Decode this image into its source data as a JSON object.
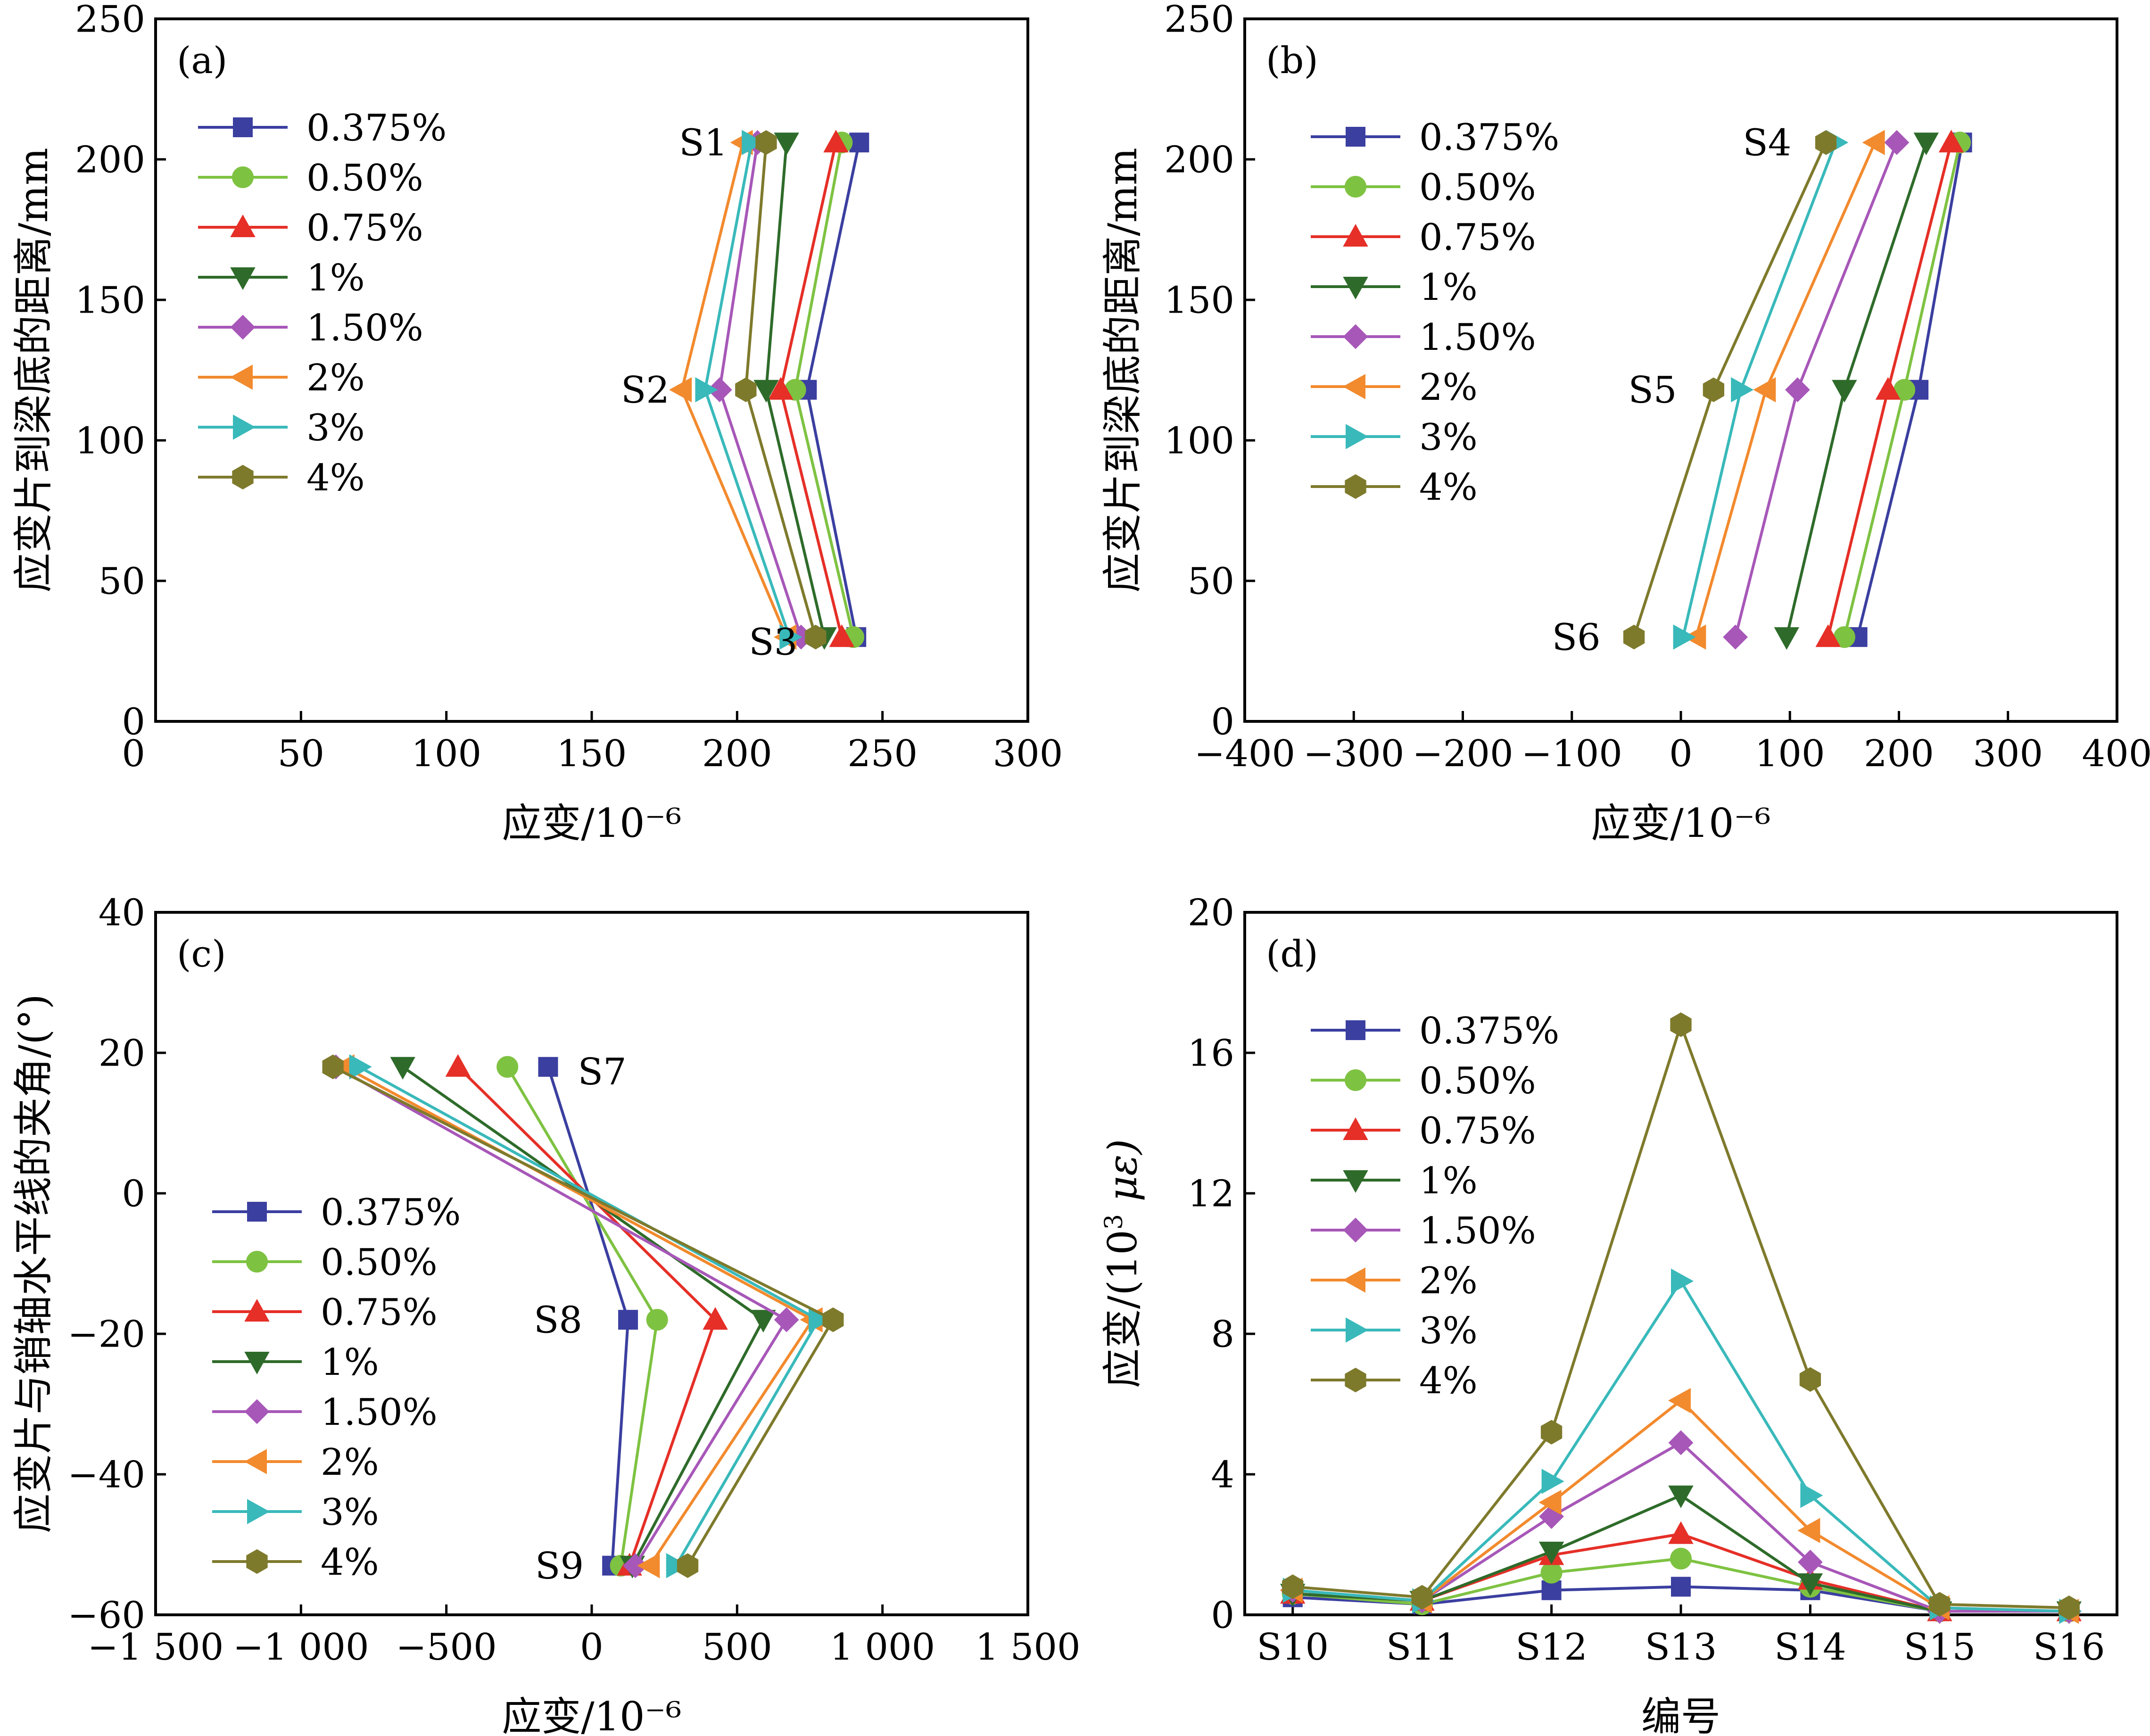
{
  "series_names": [
    "0.375%",
    "0.50%",
    "0.75%",
    "1%",
    "1.50%",
    "2%",
    "3%",
    "4%"
  ],
  "series_colors": [
    "#3b3fa0",
    "#7ec242",
    "#e52f27",
    "#2e6b2a",
    "#a757b8",
    "#f28a2e",
    "#39b9ba",
    "#7e7a2c"
  ],
  "series_markers": [
    "square",
    "circle",
    "triangle-up",
    "triangle-down",
    "diamond",
    "triangle-left",
    "triangle-right",
    "hexagon"
  ],
  "chart_data": [
    {
      "id": "a",
      "panel_label": "(a)",
      "type": "line",
      "xlabel": "应变/10⁻⁶",
      "ylabel": "应变片到梁底的距离/mm",
      "xlim": [
        0,
        300
      ],
      "ylim": [
        0,
        250
      ],
      "xticks": [
        50,
        100,
        150,
        200,
        250,
        300
      ],
      "xtick_labels": [
        "50",
        "100",
        "150",
        "200",
        "250",
        "300"
      ],
      "yticks": [
        0,
        50,
        100,
        150,
        200,
        250
      ],
      "ytick_labels": [
        "0",
        "50",
        "100",
        "150",
        "200",
        "250"
      ],
      "legend_position": "top-left",
      "point_labels": [
        {
          "text": "S1",
          "x": 200,
          "y": 206
        },
        {
          "text": "S2",
          "x": 180,
          "y": 118
        },
        {
          "text": "S3",
          "x": 224,
          "y": 30
        }
      ],
      "series": [
        {
          "name": "0.375%",
          "x": [
            242,
            224,
            241
          ],
          "y": [
            206,
            118,
            30
          ]
        },
        {
          "name": "0.50%",
          "x": [
            236,
            220,
            240
          ],
          "y": [
            206,
            118,
            30
          ]
        },
        {
          "name": "0.75%",
          "x": [
            234,
            215,
            236
          ],
          "y": [
            206,
            118,
            30
          ]
        },
        {
          "name": "1%",
          "x": [
            217,
            210,
            230
          ],
          "y": [
            206,
            118,
            30
          ]
        },
        {
          "name": "1.50%",
          "x": [
            207,
            194,
            222
          ],
          "y": [
            206,
            118,
            30
          ]
        },
        {
          "name": "2%",
          "x": [
            202,
            181,
            217
          ],
          "y": [
            206,
            118,
            30
          ]
        },
        {
          "name": "3%",
          "x": [
            205,
            189,
            218
          ],
          "y": [
            206,
            118,
            30
          ]
        },
        {
          "name": "4%",
          "x": [
            210,
            203,
            227
          ],
          "y": [
            206,
            118,
            30
          ]
        }
      ]
    },
    {
      "id": "b",
      "panel_label": "(b)",
      "type": "line",
      "xlabel": "应变/10⁻⁶",
      "ylabel": "应变片到梁底的距离/mm",
      "xlim": [
        -400,
        400
      ],
      "ylim": [
        0,
        250
      ],
      "xticks": [
        -400,
        -300,
        -200,
        -100,
        0,
        100,
        200,
        300,
        400
      ],
      "xtick_labels": [
        "−400",
        "−300",
        "−200",
        "−100",
        "0",
        "100",
        "200",
        "300",
        "400"
      ],
      "yticks": [
        0,
        50,
        100,
        150,
        200,
        250
      ],
      "ytick_labels": [
        "0",
        "50",
        "100",
        "150",
        "200",
        "250"
      ],
      "legend_position": "top-left",
      "point_labels": [
        {
          "text": "S4",
          "x": 110,
          "y": 206
        },
        {
          "text": "S5",
          "x": 5,
          "y": 118
        },
        {
          "text": "S6",
          "x": -65,
          "y": 30
        }
      ],
      "series": [
        {
          "name": "0.375%",
          "x": [
            258,
            218,
            162
          ],
          "y": [
            206,
            118,
            30
          ]
        },
        {
          "name": "0.50%",
          "x": [
            256,
            205,
            150
          ],
          "y": [
            206,
            118,
            30
          ]
        },
        {
          "name": "0.75%",
          "x": [
            248,
            190,
            135
          ],
          "y": [
            206,
            118,
            30
          ]
        },
        {
          "name": "1%",
          "x": [
            225,
            150,
            97
          ],
          "y": [
            206,
            118,
            30
          ]
        },
        {
          "name": "1.50%",
          "x": [
            198,
            107,
            50
          ],
          "y": [
            206,
            118,
            30
          ]
        },
        {
          "name": "2%",
          "x": [
            178,
            78,
            14
          ],
          "y": [
            206,
            118,
            30
          ]
        },
        {
          "name": "3%",
          "x": [
            142,
            55,
            2
          ],
          "y": [
            206,
            118,
            30
          ]
        },
        {
          "name": "4%",
          "x": [
            133,
            30,
            -43
          ],
          "y": [
            206,
            118,
            30
          ]
        }
      ]
    },
    {
      "id": "c",
      "panel_label": "(c)",
      "type": "line",
      "xlabel": "应变/10⁻⁶",
      "ylabel": "应变片与销轴水平线的夹角/(°)",
      "xlim": [
        -1500,
        1500
      ],
      "ylim": [
        -60,
        40
      ],
      "xticks": [
        -1500,
        -1000,
        -500,
        0,
        500,
        1000,
        1500
      ],
      "xtick_labels": [
        "−1 500",
        "−1 000",
        "−500",
        "0",
        "500",
        "1 000",
        "1 500"
      ],
      "yticks": [
        -60,
        -40,
        -20,
        0,
        20,
        40
      ],
      "ytick_labels": [
        "−60",
        "−40",
        "−20",
        "0",
        "20",
        "40"
      ],
      "legend_position": "center-left",
      "point_labels": [
        {
          "text": "S7",
          "x": -80,
          "y": 18
        },
        {
          "text": "S8",
          "x": 0,
          "y": -18
        },
        {
          "text": "S9",
          "x": 5,
          "y": -53
        }
      ],
      "series": [
        {
          "name": "0.375%",
          "x": [
            -150,
            125,
            70
          ],
          "y": [
            18,
            -18,
            -53
          ]
        },
        {
          "name": "0.50%",
          "x": [
            -290,
            225,
            100
          ],
          "y": [
            18,
            -18,
            -53
          ]
        },
        {
          "name": "0.75%",
          "x": [
            -460,
            425,
            130
          ],
          "y": [
            18,
            -18,
            -53
          ]
        },
        {
          "name": "1%",
          "x": [
            -650,
            590,
            140
          ],
          "y": [
            18,
            -18,
            -53
          ]
        },
        {
          "name": "1.50%",
          "x": [
            -880,
            670,
            150
          ],
          "y": [
            18,
            -18,
            -53
          ]
        },
        {
          "name": "2%",
          "x": [
            -850,
            760,
            200
          ],
          "y": [
            18,
            -18,
            -53
          ]
        },
        {
          "name": "3%",
          "x": [
            -800,
            780,
            290
          ],
          "y": [
            18,
            -18,
            -53
          ]
        },
        {
          "name": "4%",
          "x": [
            -890,
            830,
            330
          ],
          "y": [
            18,
            -18,
            -53
          ]
        }
      ]
    },
    {
      "id": "d",
      "panel_label": "(d)",
      "type": "line",
      "xlabel": "编号",
      "ylabel_prefix": "应变/(10",
      "ylabel_exp": "3",
      "ylabel_unit": " με)",
      "categories": [
        "S10",
        "S11",
        "S12",
        "S13",
        "S14",
        "S15",
        "S16"
      ],
      "ylim": [
        0,
        20
      ],
      "yticks": [
        0,
        4,
        8,
        12,
        16,
        20
      ],
      "ytick_labels": [
        "0",
        "4",
        "8",
        "12",
        "16",
        "20"
      ],
      "legend_position": "top-left",
      "series": [
        {
          "name": "0.375%",
          "values": [
            0.5,
            0.3,
            0.7,
            0.8,
            0.7,
            0.1,
            0.1
          ]
        },
        {
          "name": "0.50%",
          "values": [
            0.6,
            0.3,
            1.2,
            1.6,
            0.8,
            0.1,
            0.1
          ]
        },
        {
          "name": "0.75%",
          "values": [
            0.6,
            0.4,
            1.7,
            2.3,
            1.0,
            0.1,
            0.1
          ]
        },
        {
          "name": "1%",
          "values": [
            0.6,
            0.4,
            1.8,
            3.4,
            0.9,
            0.1,
            0.1
          ]
        },
        {
          "name": "1.50%",
          "values": [
            0.7,
            0.4,
            2.8,
            4.9,
            1.5,
            0.1,
            0.1
          ]
        },
        {
          "name": "2%",
          "values": [
            0.7,
            0.4,
            3.2,
            6.1,
            2.4,
            0.2,
            0.1
          ]
        },
        {
          "name": "3%",
          "values": [
            0.7,
            0.4,
            3.8,
            9.5,
            3.4,
            0.2,
            0.1
          ]
        },
        {
          "name": "4%",
          "values": [
            0.8,
            0.5,
            5.2,
            16.8,
            6.7,
            0.3,
            0.2
          ]
        }
      ]
    }
  ]
}
